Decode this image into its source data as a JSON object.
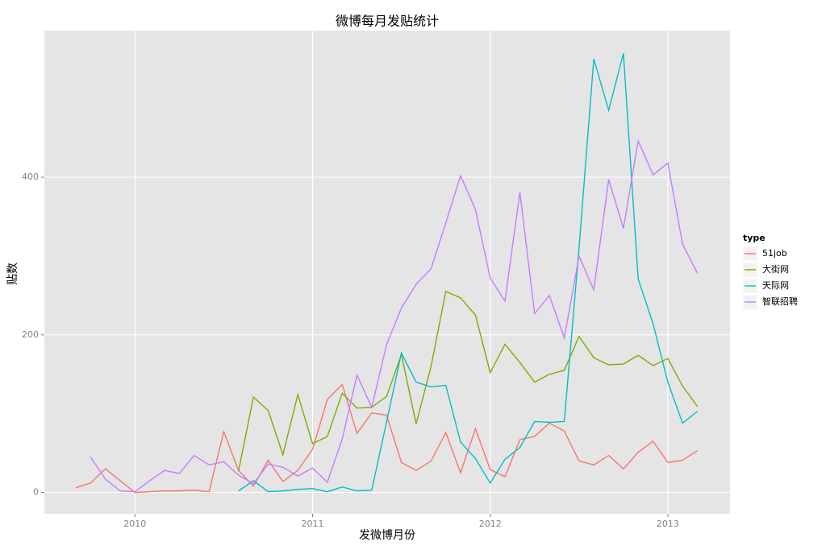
{
  "chart_data": {
    "type": "line",
    "title": "微博每月发贴统计",
    "x_label": "发微博月份",
    "y_label": "贴数",
    "x": [
      2009.667,
      2009.75,
      2009.833,
      2009.917,
      2010,
      2010.083,
      2010.167,
      2010.25,
      2010.333,
      2010.417,
      2010.5,
      2010.583,
      2010.667,
      2010.75,
      2010.833,
      2010.917,
      2011,
      2011.083,
      2011.167,
      2011.25,
      2011.333,
      2011.417,
      2011.5,
      2011.583,
      2011.667,
      2011.75,
      2011.833,
      2011.917,
      2012,
      2012.083,
      2012.167,
      2012.25,
      2012.333,
      2012.417,
      2012.5,
      2012.583,
      2012.667,
      2012.75,
      2012.833,
      2012.917,
      2013,
      2013.083,
      2013.167
    ],
    "series": [
      {
        "name": "51job",
        "color": "#F8766D",
        "values": [
          6,
          12,
          30,
          15,
          0,
          1,
          2,
          2,
          3,
          1,
          77,
          28,
          8,
          41,
          14,
          28,
          55,
          118,
          137,
          75,
          101,
          98,
          38,
          28,
          40,
          76,
          25,
          81,
          29,
          20,
          67,
          71,
          88,
          78,
          40,
          35,
          47,
          30,
          51,
          65,
          38,
          41,
          53
        ]
      },
      {
        "name": "大街网",
        "color": "#7CAE00",
        "values": [
          null,
          null,
          null,
          null,
          null,
          null,
          null,
          null,
          null,
          null,
          null,
          27,
          121,
          104,
          48,
          124,
          62,
          71,
          126,
          107,
          108,
          122,
          175,
          87,
          160,
          255,
          247,
          225,
          152,
          188,
          165,
          140,
          150,
          155,
          198,
          171,
          162,
          163,
          174,
          161,
          170,
          135,
          109
        ]
      },
      {
        "name": "天际网",
        "color": "#00BFC4",
        "values": [
          null,
          null,
          null,
          null,
          null,
          null,
          null,
          null,
          null,
          null,
          null,
          2,
          15,
          1,
          2,
          4,
          5,
          1,
          7,
          2,
          3,
          90,
          177,
          140,
          134,
          136,
          64,
          43,
          12,
          42,
          57,
          90,
          89,
          90,
          310,
          550,
          485,
          557,
          271,
          214,
          140,
          88,
          103
        ]
      },
      {
        "name": "智联招聘",
        "color": "#C77CFF",
        "values": [
          null,
          45,
          17,
          2,
          1,
          15,
          28,
          24,
          47,
          35,
          39,
          22,
          11,
          36,
          32,
          21,
          31,
          13,
          68,
          149,
          108,
          188,
          234,
          264,
          284,
          342,
          402,
          359,
          272,
          243,
          381,
          227,
          250,
          196,
          300,
          257,
          397,
          335,
          446,
          403,
          418,
          315,
          278
        ]
      }
    ],
    "xlim": [
      2009.49,
      2013.35
    ],
    "xticks": [
      2010,
      2011,
      2012,
      2013
    ],
    "ylim": [
      -27,
      586
    ],
    "yticks": [
      0,
      200,
      400
    ],
    "grid": true,
    "legend_title": "type",
    "legend_position": "right"
  }
}
